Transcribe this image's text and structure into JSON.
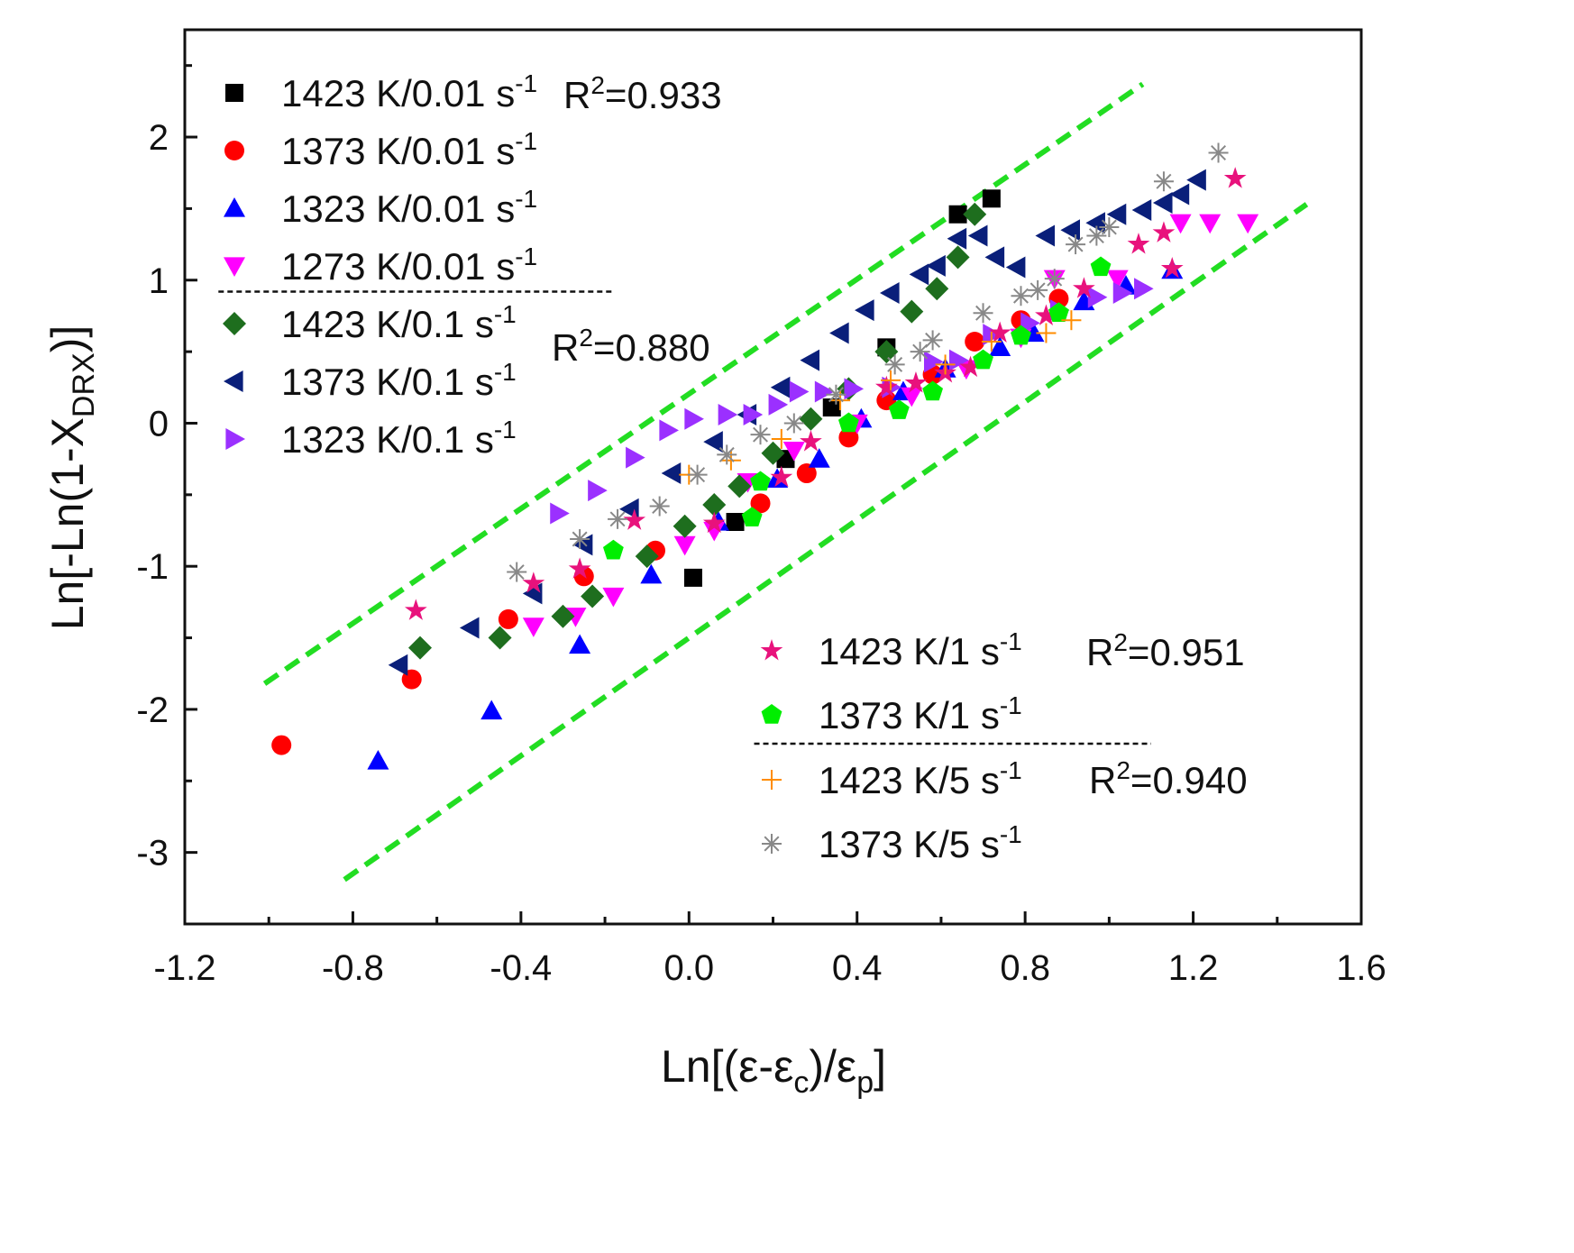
{
  "chart_data": {
    "type": "scatter",
    "xlabel": {
      "main": "Ln[(ε-ε",
      "sub1": "c",
      "mid": ")/ε",
      "sub2": "p",
      "end": "]"
    },
    "ylabel": {
      "main": "Ln[-Ln(1-X",
      "sub": "DRX",
      "end": ")]"
    },
    "xlim": [
      -1.2,
      1.6
    ],
    "ylim": [
      -3.5,
      2.75
    ],
    "xticks": [
      "-1.2",
      "-0.8",
      "-0.4",
      "0.0",
      "0.4",
      "0.8",
      "1.2",
      "1.6"
    ],
    "xtick_values": [
      -1.2,
      -0.8,
      -0.4,
      0.0,
      0.4,
      0.8,
      1.2,
      1.6
    ],
    "yticks": [
      "2",
      "1",
      "0",
      "-1",
      "-2",
      "-3"
    ],
    "ytick_values": [
      2,
      1,
      0,
      -1,
      -2,
      -3
    ],
    "grid": false,
    "series": [
      {
        "name": "1423 K/0.01 s",
        "sup": "-1",
        "marker": "square",
        "color": "#000000",
        "x": [
          0.01,
          0.11,
          0.23,
          0.34,
          0.47,
          0.64,
          0.72
        ],
        "y": [
          -1.08,
          -0.69,
          -0.25,
          0.11,
          0.53,
          1.46,
          1.57
        ]
      },
      {
        "name": "1373 K/0.01 s",
        "sup": "-1",
        "marker": "circle",
        "color": "#ff0000",
        "x": [
          -0.97,
          -0.66,
          -0.43,
          -0.25,
          -0.08,
          0.17,
          0.28,
          0.38,
          0.47,
          0.58,
          0.68,
          0.79,
          0.88
        ],
        "y": [
          -2.25,
          -1.79,
          -1.37,
          -1.07,
          -0.89,
          -0.56,
          -0.35,
          -0.1,
          0.16,
          0.34,
          0.57,
          0.72,
          0.87
        ]
      },
      {
        "name": "1323 K/0.01 s",
        "sup": "-1",
        "marker": "triangle-up",
        "color": "#0000ff",
        "x": [
          -0.74,
          -0.47,
          -0.26,
          -0.09,
          0.07,
          0.21,
          0.31,
          0.41,
          0.51,
          0.61,
          0.74,
          0.82,
          0.94,
          1.04,
          1.15
        ],
        "y": [
          -2.36,
          -2.01,
          -1.55,
          -1.06,
          -0.69,
          -0.39,
          -0.25,
          0.03,
          0.22,
          0.38,
          0.53,
          0.63,
          0.85,
          0.96,
          1.07
        ]
      },
      {
        "name": "1273 K/0.01 s",
        "sup": "-1",
        "marker": "triangle-down",
        "color": "#ff00ff",
        "x": [
          -0.37,
          -0.27,
          -0.18,
          -0.01,
          0.06,
          0.14,
          0.25,
          0.4,
          0.53,
          0.66,
          0.79,
          0.87,
          1.02,
          1.17,
          1.24,
          1.33
        ],
        "y": [
          -1.42,
          -1.35,
          -1.21,
          -0.85,
          -0.75,
          -0.41,
          -0.19,
          0.0,
          0.19,
          0.38,
          0.6,
          1.01,
          1.01,
          1.4,
          1.4,
          1.4
        ]
      },
      {
        "name": "1423 K/0.1 s",
        "sup": "-1",
        "marker": "diamond",
        "color": "#1e6e1e",
        "x": [
          -0.64,
          -0.45,
          -0.3,
          -0.23,
          -0.1,
          -0.01,
          0.06,
          0.12,
          0.2,
          0.29,
          0.38,
          0.47,
          0.53,
          0.59,
          0.64,
          0.68
        ],
        "y": [
          -1.57,
          -1.5,
          -1.35,
          -1.21,
          -0.93,
          -0.72,
          -0.57,
          -0.44,
          -0.21,
          0.03,
          0.24,
          0.5,
          0.78,
          0.94,
          1.16,
          1.46
        ]
      },
      {
        "name": "1373 K/0.1 s",
        "sup": "-1",
        "marker": "triangle-left",
        "color": "#0a1f7a",
        "x": [
          -0.69,
          -0.52,
          -0.37,
          -0.25,
          -0.14,
          -0.04,
          0.06,
          0.14,
          0.22,
          0.29,
          0.36,
          0.42,
          0.48,
          0.55,
          0.59,
          0.64,
          0.69,
          0.73,
          0.78,
          0.85,
          0.91,
          0.97,
          1.02,
          1.08,
          1.13,
          1.17,
          1.21
        ],
        "y": [
          -1.69,
          -1.43,
          -1.19,
          -0.85,
          -0.6,
          -0.35,
          -0.13,
          0.06,
          0.25,
          0.44,
          0.63,
          0.79,
          0.91,
          1.04,
          1.1,
          1.29,
          1.31,
          1.16,
          1.09,
          1.31,
          1.35,
          1.4,
          1.46,
          1.49,
          1.54,
          1.6,
          1.7
        ]
      },
      {
        "name": "1323 K/0.1 s",
        "sup": "-1",
        "marker": "triangle-right",
        "color": "#9b30ff",
        "x": [
          -0.31,
          -0.22,
          -0.13,
          -0.05,
          0.01,
          0.09,
          0.15,
          0.21,
          0.26,
          0.32,
          0.39,
          0.48,
          0.58,
          0.64,
          0.72,
          0.81,
          0.88,
          0.97,
          1.03,
          1.08
        ],
        "y": [
          -0.63,
          -0.47,
          -0.24,
          -0.05,
          0.03,
          0.06,
          0.06,
          0.13,
          0.22,
          0.22,
          0.24,
          0.25,
          0.43,
          0.44,
          0.62,
          0.7,
          0.79,
          0.88,
          0.91,
          0.94
        ]
      },
      {
        "name": "1423 K/1 s",
        "sup": "-1",
        "marker": "star",
        "color": "#e8127c",
        "x": [
          -0.65,
          -0.37,
          -0.26,
          -0.13,
          0.06,
          0.22,
          0.29,
          0.47,
          0.54,
          0.61,
          0.67,
          0.74,
          0.85,
          0.94,
          1.07,
          1.13,
          1.15,
          1.3
        ],
        "y": [
          -1.31,
          -1.12,
          -1.02,
          -0.68,
          -0.7,
          -0.38,
          -0.13,
          0.25,
          0.28,
          0.35,
          0.39,
          0.63,
          0.75,
          0.94,
          1.25,
          1.33,
          1.08,
          1.71
        ]
      },
      {
        "name": "1373 K/1 s",
        "sup": "-1",
        "marker": "pentagon",
        "color": "#00ee00",
        "x": [
          -0.18,
          0.15,
          0.17,
          0.38,
          0.5,
          0.58,
          0.7,
          0.79,
          0.88,
          0.98
        ],
        "y": [
          -0.89,
          -0.66,
          -0.41,
          0.0,
          0.09,
          0.22,
          0.44,
          0.61,
          0.77,
          1.09
        ]
      },
      {
        "name": "1423 K/5 s",
        "sup": "-1",
        "marker": "plus",
        "color": "#ff8c00",
        "x": [
          0.0,
          0.1,
          0.22,
          0.36,
          0.48,
          0.61,
          0.72,
          0.85,
          0.91
        ],
        "y": [
          -0.36,
          -0.26,
          -0.11,
          0.16,
          0.3,
          0.41,
          0.57,
          0.63,
          0.72
        ]
      },
      {
        "name": "1373 K/5 s",
        "sup": "-1",
        "marker": "asterisk",
        "color": "#888888",
        "x": [
          -0.41,
          -0.26,
          -0.17,
          -0.07,
          0.02,
          0.09,
          0.17,
          0.25,
          0.35,
          0.49,
          0.55,
          0.58,
          0.7,
          0.79,
          0.83,
          0.87,
          0.92,
          0.97,
          1.0,
          1.13,
          1.26
        ],
        "y": [
          -1.04,
          -0.81,
          -0.67,
          -0.58,
          -0.36,
          -0.22,
          -0.08,
          0.0,
          0.2,
          0.41,
          0.5,
          0.58,
          0.77,
          0.89,
          0.93,
          1.01,
          1.25,
          1.31,
          1.37,
          1.69,
          1.89
        ]
      }
    ],
    "bound_lines": [
      {
        "name": "upper-bound",
        "color": "#22dd22",
        "x": [
          -1.01,
          1.08
        ],
        "y": [
          -1.82,
          2.37
        ]
      },
      {
        "name": "lower-bound",
        "color": "#22dd22",
        "x": [
          -0.82,
          1.47
        ],
        "y": [
          -3.19,
          1.53
        ]
      }
    ],
    "group_separators": [
      {
        "x": [
          -1.12,
          -0.18
        ],
        "y": 0.92
      },
      {
        "x": [
          0.155,
          1.1
        ],
        "y": -2.24
      }
    ],
    "annotations": [
      {
        "prefix": "R",
        "sup": "2",
        "value": "=0.933"
      },
      {
        "prefix": "R",
        "sup": "2",
        "value": "=0.880"
      },
      {
        "prefix": "R",
        "sup": "2",
        "value": "=0.951"
      },
      {
        "prefix": "R",
        "sup": "2",
        "value": "=0.940"
      }
    ]
  }
}
